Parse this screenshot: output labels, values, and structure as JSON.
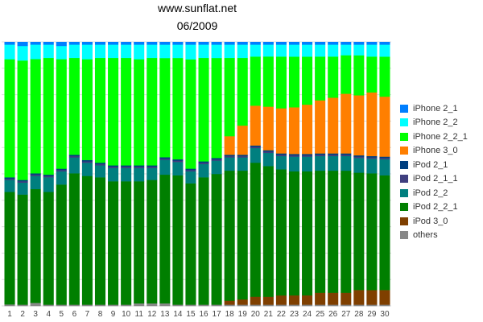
{
  "chart_data": {
    "type": "bar",
    "stacked": true,
    "normalized": true,
    "title": "www.sunflat.net",
    "subtitle": "06/2009",
    "categories": [
      "1",
      "2",
      "3",
      "4",
      "5",
      "6",
      "7",
      "8",
      "9",
      "10",
      "11",
      "12",
      "13",
      "14",
      "15",
      "16",
      "17",
      "18",
      "19",
      "20",
      "21",
      "22",
      "23",
      "24",
      "25",
      "26",
      "27",
      "28",
      "29",
      "30"
    ],
    "ylim": [
      0,
      100
    ],
    "grid": "horizontal",
    "legend_position": "right",
    "series": [
      {
        "name": "others",
        "color": "#888888",
        "values": [
          0.6,
          0.5,
          1.2,
          0.5,
          0.5,
          0.5,
          0.5,
          0.5,
          0.5,
          0.5,
          1.0,
          1.0,
          1.0,
          0.5,
          0.5,
          0.5,
          0.5,
          0.5,
          0.5,
          0.5,
          0.5,
          0.5,
          0.5,
          0.5,
          0.5,
          0.5,
          0.5,
          0.5,
          0.5,
          0.5
        ]
      },
      {
        "name": "iPod 3_0",
        "color": "#7F3F00",
        "values": [
          0,
          0,
          0,
          0,
          0,
          0,
          0,
          0,
          0,
          0,
          0,
          0,
          0,
          0,
          0,
          0,
          0,
          1.5,
          2.0,
          3.0,
          3.0,
          3.5,
          3.5,
          3.5,
          4.5,
          4.5,
          4.5,
          5.5,
          5.5,
          5.5
        ]
      },
      {
        "name": "iPod 2_2_1",
        "color": "#007F00",
        "values": [
          42.4,
          41.5,
          43.3,
          42.5,
          45.5,
          49.5,
          48.5,
          48.0,
          46.5,
          46.5,
          46.0,
          46.5,
          48.0,
          48.5,
          45.5,
          48.0,
          49.0,
          49.0,
          48.5,
          50.5,
          49.5,
          47.5,
          46.5,
          46.5,
          46.0,
          46.0,
          46.0,
          44.0,
          44.0,
          43.0
        ]
      },
      {
        "name": "iPod 2_2",
        "color": "#007F7F",
        "values": [
          4.5,
          4.5,
          5.0,
          5.5,
          5.0,
          6.0,
          5.0,
          4.5,
          5.0,
          5.0,
          5.0,
          4.5,
          5.5,
          5.0,
          4.5,
          5.0,
          5.0,
          5.0,
          5.0,
          5.5,
          5.0,
          5.0,
          5.5,
          5.5,
          5.5,
          5.5,
          5.5,
          5.5,
          5.5,
          6.0
        ]
      },
      {
        "name": "iPod 2_1_1",
        "color": "#3F3F7F",
        "values": [
          0.5,
          0.5,
          0.5,
          0.5,
          0.5,
          0.5,
          0.5,
          0.5,
          0.5,
          0.5,
          0.5,
          0.5,
          0.5,
          0.5,
          0.5,
          0.5,
          0.5,
          0.5,
          0.5,
          0.5,
          0.5,
          0.5,
          0.5,
          0.5,
          0.5,
          0.5,
          0.5,
          0.5,
          0.5,
          0.5
        ]
      },
      {
        "name": "iPod 2_1",
        "color": "#003F7F",
        "values": [
          0.5,
          0.5,
          0.5,
          0.5,
          0.5,
          0.5,
          0.5,
          0.5,
          0.5,
          0.5,
          0.5,
          0.5,
          0.5,
          0.5,
          0.5,
          0.5,
          0.5,
          0.5,
          0.5,
          0.5,
          0.5,
          0.5,
          0.5,
          0.5,
          0.5,
          0.5,
          0.5,
          0.5,
          0.5,
          0.5
        ]
      },
      {
        "name": "iPhone 3_0",
        "color": "#FF7F00",
        "values": [
          0,
          0,
          0,
          0,
          0,
          0,
          0,
          0,
          0,
          0,
          0,
          0,
          0,
          0,
          0,
          0,
          0,
          7.0,
          11.0,
          15.0,
          16.5,
          17.0,
          17.5,
          18.5,
          20.0,
          21.0,
          22.5,
          22.5,
          24.0,
          22.5
        ]
      },
      {
        "name": "iPhone 2_2_1",
        "color": "#00FF00",
        "values": [
          44.5,
          45.0,
          43.5,
          44.0,
          41.5,
          36.5,
          38.0,
          39.5,
          40.5,
          40.5,
          40.0,
          40.5,
          37.0,
          38.0,
          41.0,
          39.0,
          37.5,
          29.5,
          25.5,
          18.5,
          19.0,
          19.5,
          19.0,
          18.0,
          16.5,
          15.5,
          14.5,
          15.0,
          13.5,
          15.0
        ]
      },
      {
        "name": "iPhone 2_2",
        "color": "#00FFFF",
        "values": [
          5.5,
          5.5,
          5.5,
          5.0,
          5.0,
          5.0,
          5.5,
          5.0,
          5.0,
          5.0,
          5.5,
          5.0,
          5.0,
          5.0,
          5.5,
          5.0,
          5.0,
          5.0,
          5.0,
          4.5,
          4.5,
          4.5,
          4.5,
          4.5,
          4.5,
          4.5,
          4.0,
          4.0,
          4.5,
          4.5
        ]
      },
      {
        "name": "iPhone 2_1",
        "color": "#007FFF",
        "values": [
          1.0,
          1.5,
          1.0,
          1.0,
          1.5,
          1.0,
          1.0,
          1.0,
          1.0,
          1.0,
          1.0,
          1.0,
          1.0,
          1.0,
          1.0,
          1.0,
          1.0,
          1.0,
          1.0,
          1.0,
          1.0,
          1.0,
          1.0,
          1.0,
          1.0,
          1.0,
          1.0,
          1.0,
          1.0,
          1.0
        ]
      }
    ],
    "legend_order": [
      "iPhone 2_1",
      "iPhone 2_2",
      "iPhone 2_2_1",
      "iPhone 3_0",
      "iPod 2_1",
      "iPod 2_1_1",
      "iPod 2_2",
      "iPod 2_2_1",
      "iPod 3_0",
      "others"
    ]
  }
}
